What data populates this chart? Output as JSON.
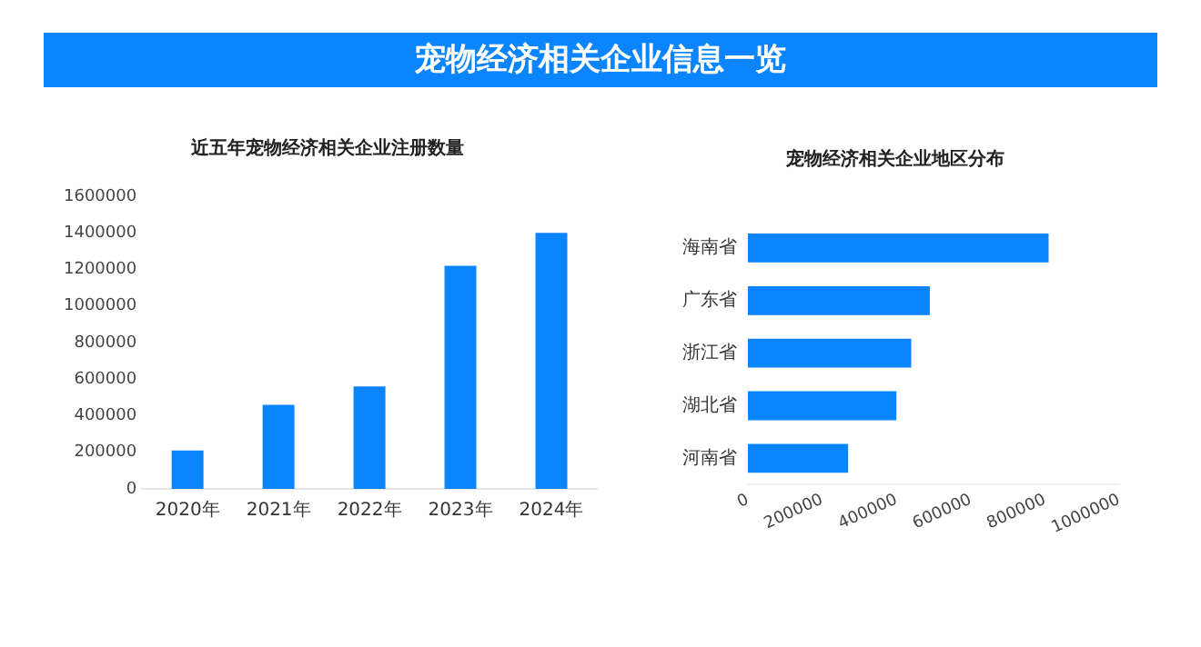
{
  "chart_data": [
    {
      "type": "other",
      "title": "宠物经济相关企业信息一览"
    },
    {
      "type": "bar",
      "title": "近五年宠物经济相关企业注册数量",
      "categories": [
        "2020年",
        "2021年",
        "2022年",
        "2023年",
        "2024年"
      ],
      "values": [
        210000,
        460000,
        560000,
        1220000,
        1400000
      ],
      "color": "#0a84ff",
      "ylim": [
        0,
        1600000
      ],
      "yticks": [
        0,
        200000,
        400000,
        600000,
        800000,
        1000000,
        1200000,
        1400000,
        1600000
      ],
      "grid": false,
      "legend": false
    },
    {
      "type": "bar",
      "orientation": "horizontal",
      "title": "宠物经济相关企业地区分布",
      "categories": [
        "海南省",
        "广东省",
        "浙江省",
        "湖北省",
        "河南省"
      ],
      "values": [
        810000,
        490000,
        440000,
        400000,
        270000
      ],
      "color": "#0a84ff",
      "xlim": [
        0,
        1000000
      ],
      "xticks": [
        0,
        200000,
        400000,
        600000,
        800000,
        1000000
      ],
      "grid": false,
      "legend": false
    }
  ]
}
